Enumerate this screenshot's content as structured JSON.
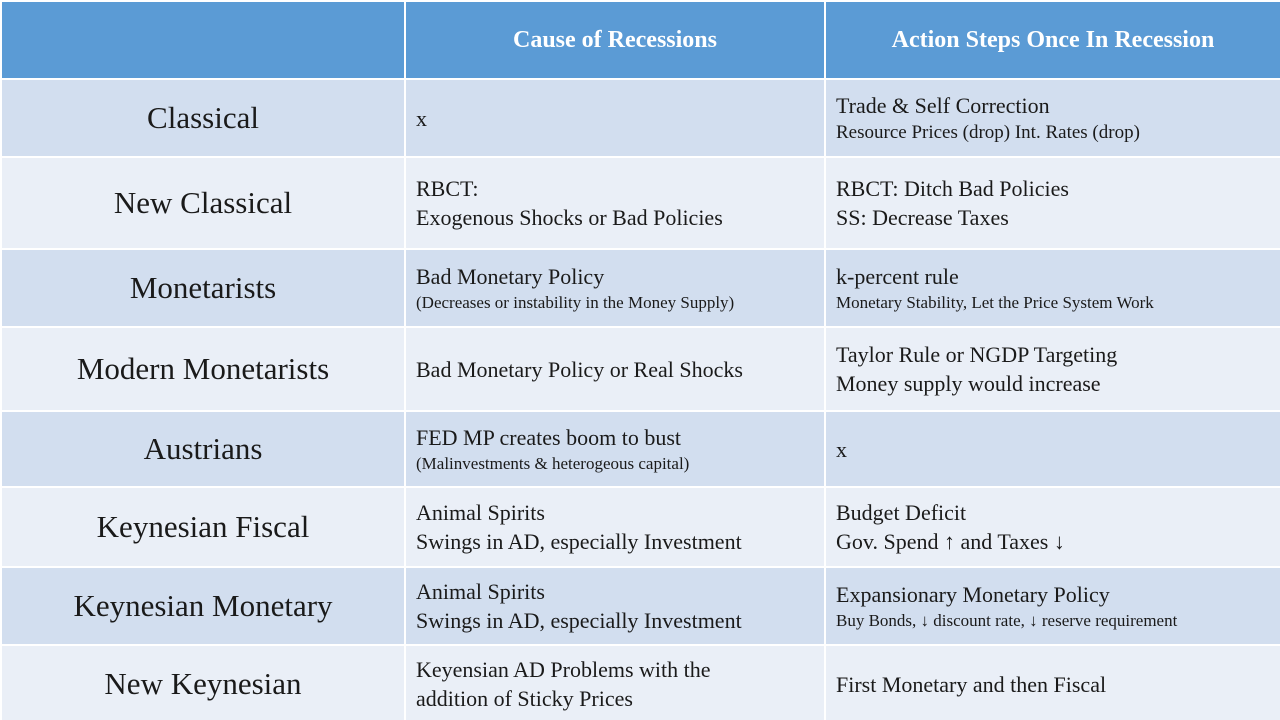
{
  "header": {
    "col1": "",
    "col2": "Cause of Recessions",
    "col3": "Action Steps Once In Recession"
  },
  "rows": [
    {
      "school": "Classical",
      "cause": [
        "x"
      ],
      "action": [
        "Trade & Self Correction",
        "Resource Prices (drop) Int. Rates (drop)"
      ]
    },
    {
      "school": "New Classical",
      "cause": [
        "RBCT:",
        "Exogenous Shocks or Bad Policies"
      ],
      "action": [
        "RBCT: Ditch Bad Policies",
        "SS: Decrease Taxes"
      ]
    },
    {
      "school": "Monetarists",
      "cause": [
        "Bad Monetary Policy",
        "(Decreases or instability in the Money Supply)"
      ],
      "action": [
        "k-percent rule",
        "Monetary Stability, Let the Price System Work"
      ]
    },
    {
      "school": "Modern Monetarists",
      "cause": [
        "Bad Monetary Policy or Real Shocks"
      ],
      "action": [
        "Taylor Rule or NGDP Targeting",
        "Money supply would increase"
      ]
    },
    {
      "school": "Austrians",
      "cause": [
        "FED MP creates boom to bust",
        "(Malinvestments & heterogeous capital)"
      ],
      "action": [
        "x"
      ]
    },
    {
      "school": "Keynesian Fiscal",
      "cause": [
        "Animal Spirits",
        "Swings in AD, especially Investment"
      ],
      "action": [
        "Budget Deficit",
        "Gov. Spend ↑ and Taxes ↓"
      ]
    },
    {
      "school": "Keynesian Monetary",
      "cause": [
        "Animal Spirits",
        "Swings in AD, especially Investment"
      ],
      "action": [
        "Expansionary Monetary Policy",
        "Buy Bonds, ↓ discount rate, ↓ reserve requirement"
      ]
    },
    {
      "school": "New Keynesian",
      "cause": [
        "Keyensian AD Problems with the",
        "addition of Sticky Prices"
      ],
      "action": [
        "First Monetary and then Fiscal"
      ]
    }
  ]
}
